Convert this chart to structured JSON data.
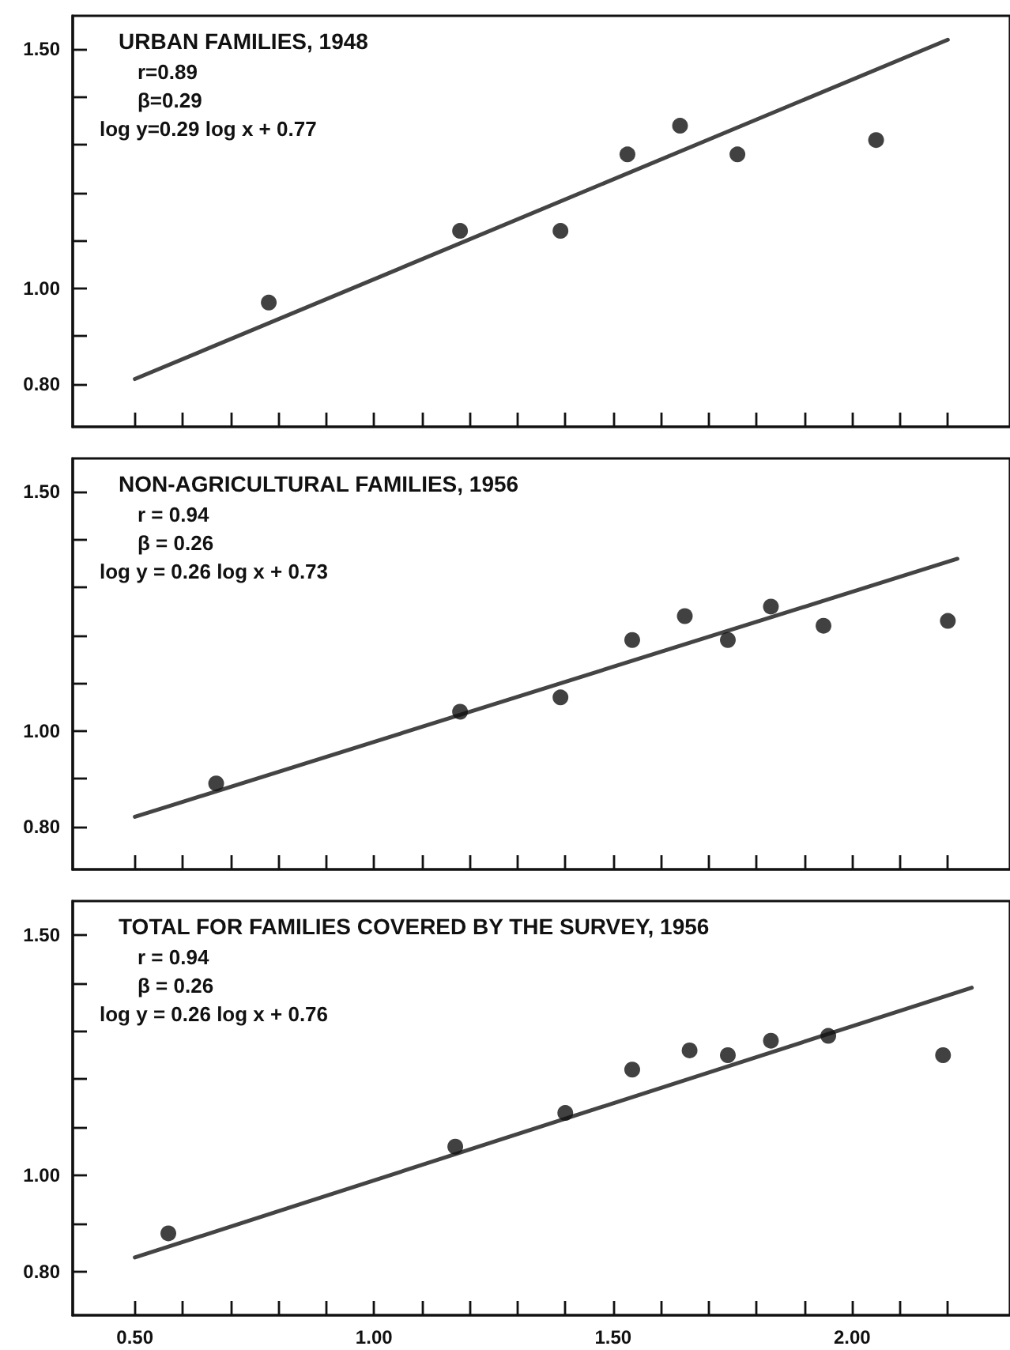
{
  "chart_data": [
    {
      "type": "scatter",
      "title": "URBAN FAMILIES, 1948",
      "annotations": [
        "r=0.89",
        "β=0.29",
        "log y=0.29 log x + 0.77"
      ],
      "xlim": [
        0.37,
        2.33
      ],
      "ylim": [
        0.71,
        1.57
      ],
      "xticks": [
        0.5,
        0.6,
        0.7,
        0.8,
        0.9,
        1.0,
        1.1,
        1.2,
        1.3,
        1.4,
        1.5,
        1.6,
        1.7,
        1.8,
        1.9,
        2.0,
        2.1,
        2.2
      ],
      "yticks": [
        {
          "value": 0.8,
          "label": "0.80"
        },
        {
          "value": 0.9,
          "label": null
        },
        {
          "value": 1.0,
          "label": "1.00"
        },
        {
          "value": 1.1,
          "label": null
        },
        {
          "value": 1.2,
          "label": null
        },
        {
          "value": 1.3,
          "label": null
        },
        {
          "value": 1.4,
          "label": null
        },
        {
          "value": 1.5,
          "label": "1.50"
        }
      ],
      "tick_labels": "y",
      "grid": false,
      "series": [
        {
          "type": "scatter",
          "color": "#111111",
          "marker": "circle",
          "x": [
            0.78,
            1.18,
            1.39,
            1.53,
            1.64,
            1.76,
            2.05
          ],
          "values": [
            0.97,
            1.12,
            1.12,
            1.28,
            1.34,
            1.28,
            1.31
          ]
        },
        {
          "type": "line",
          "color": "#444444",
          "marker": "none",
          "line_style": "solid",
          "x": [
            0.5,
            2.2
          ],
          "values": [
            0.81,
            1.52
          ]
        }
      ]
    },
    {
      "type": "scatter",
      "title": "NON-AGRICULTURAL FAMILIES, 1956",
      "annotations": [
        "r = 0.94",
        "β = 0.26",
        "log y = 0.26 log x + 0.73"
      ],
      "xlim": [
        0.37,
        2.33
      ],
      "ylim": [
        0.71,
        1.57
      ],
      "xticks": [
        0.5,
        0.6,
        0.7,
        0.8,
        0.9,
        1.0,
        1.1,
        1.2,
        1.3,
        1.4,
        1.5,
        1.6,
        1.7,
        1.8,
        1.9,
        2.0,
        2.1,
        2.2
      ],
      "yticks": [
        {
          "value": 0.8,
          "label": "0.80"
        },
        {
          "value": 0.9,
          "label": null
        },
        {
          "value": 1.0,
          "label": "1.00"
        },
        {
          "value": 1.1,
          "label": null
        },
        {
          "value": 1.2,
          "label": null
        },
        {
          "value": 1.3,
          "label": null
        },
        {
          "value": 1.4,
          "label": null
        },
        {
          "value": 1.5,
          "label": "1.50"
        }
      ],
      "tick_labels": "y",
      "grid": false,
      "series": [
        {
          "type": "scatter",
          "color": "#111111",
          "marker": "circle",
          "x": [
            0.67,
            1.18,
            1.39,
            1.54,
            1.65,
            1.74,
            1.83,
            1.94,
            2.2
          ],
          "values": [
            0.89,
            1.04,
            1.07,
            1.19,
            1.24,
            1.19,
            1.26,
            1.22,
            1.23
          ]
        },
        {
          "type": "line",
          "color": "#444444",
          "marker": "none",
          "line_style": "solid",
          "x": [
            0.5,
            2.22
          ],
          "values": [
            0.82,
            1.36
          ]
        }
      ]
    },
    {
      "type": "scatter",
      "title": "TOTAL FOR FAMILIES COVERED BY THE SURVEY, 1956",
      "annotations": [
        "r = 0.94",
        "β = 0.26",
        "log y = 0.26 log x + 0.76"
      ],
      "xlim": [
        0.37,
        2.33
      ],
      "ylim": [
        0.71,
        1.57
      ],
      "xticks": [
        {
          "value": 0.5,
          "label": "0.50"
        },
        {
          "value": 0.6,
          "label": null
        },
        {
          "value": 0.7,
          "label": null
        },
        {
          "value": 0.8,
          "label": null
        },
        {
          "value": 0.9,
          "label": null
        },
        {
          "value": 1.0,
          "label": "1.00"
        },
        {
          "value": 1.1,
          "label": null
        },
        {
          "value": 1.2,
          "label": null
        },
        {
          "value": 1.3,
          "label": null
        },
        {
          "value": 1.4,
          "label": null
        },
        {
          "value": 1.5,
          "label": "1.50"
        },
        {
          "value": 1.6,
          "label": null
        },
        {
          "value": 1.7,
          "label": null
        },
        {
          "value": 1.8,
          "label": null
        },
        {
          "value": 1.9,
          "label": null
        },
        {
          "value": 2.0,
          "label": "2.00"
        },
        {
          "value": 2.1,
          "label": null
        },
        {
          "value": 2.2,
          "label": null
        }
      ],
      "yticks": [
        {
          "value": 0.8,
          "label": "0.80"
        },
        {
          "value": 0.9,
          "label": null
        },
        {
          "value": 1.0,
          "label": "1.00"
        },
        {
          "value": 1.1,
          "label": null
        },
        {
          "value": 1.2,
          "label": null
        },
        {
          "value": 1.3,
          "label": null
        },
        {
          "value": 1.4,
          "label": null
        },
        {
          "value": 1.5,
          "label": "1.50"
        }
      ],
      "grid": false,
      "series": [
        {
          "type": "scatter",
          "color": "#111111",
          "marker": "circle",
          "x": [
            0.57,
            1.17,
            1.4,
            1.54,
            1.66,
            1.74,
            1.83,
            1.95,
            2.19
          ],
          "values": [
            0.88,
            1.06,
            1.13,
            1.22,
            1.26,
            1.25,
            1.28,
            1.29,
            1.25
          ]
        },
        {
          "type": "line",
          "color": "#444444",
          "marker": "none",
          "line_style": "solid",
          "x": [
            0.5,
            2.25
          ],
          "values": [
            0.83,
            1.39
          ]
        }
      ]
    }
  ]
}
